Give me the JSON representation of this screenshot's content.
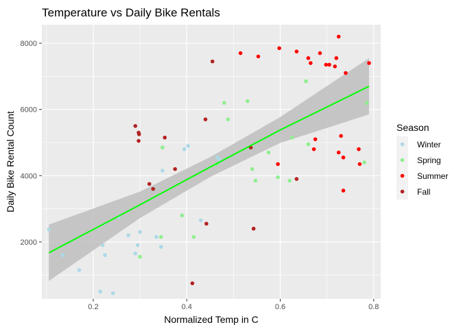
{
  "chart_data": {
    "type": "scatter",
    "title": "Temperature vs Daily Bike Rentals",
    "xlabel": "Normalized Temp in C",
    "ylabel": "Daily Bike Rental Count",
    "xlim": [
      0.09,
      0.815
    ],
    "ylim": [
      280,
      8560
    ],
    "x_ticks": [
      0.2,
      0.4,
      0.6,
      0.8
    ],
    "x_tick_labels": [
      "0.2",
      "0.4",
      "0.6",
      "0.8"
    ],
    "y_ticks": [
      2000,
      4000,
      6000,
      8000
    ],
    "y_tick_labels": [
      "2000",
      "4000",
      "6000",
      "8000"
    ],
    "grid": true,
    "panel_background": "#ebebeb",
    "legend": {
      "title": "Season",
      "position": "right"
    },
    "series": [
      {
        "name": "Winter",
        "color": "#add8e6",
        "points": [
          [
            0.105,
            2370
          ],
          [
            0.135,
            1600
          ],
          [
            0.17,
            1150
          ],
          [
            0.215,
            500
          ],
          [
            0.22,
            1900
          ],
          [
            0.225,
            1600
          ],
          [
            0.242,
            450
          ],
          [
            0.255,
            2750
          ],
          [
            0.275,
            2200
          ],
          [
            0.29,
            1650
          ],
          [
            0.295,
            1900
          ],
          [
            0.3,
            2300
          ],
          [
            0.335,
            2150
          ],
          [
            0.345,
            1850
          ],
          [
            0.348,
            4150
          ],
          [
            0.395,
            4800
          ],
          [
            0.403,
            4900
          ],
          [
            0.43,
            2650
          ],
          [
            0.465,
            4550
          ],
          [
            0.47,
            4500
          ]
        ]
      },
      {
        "name": "Spring",
        "color": "#90ee90",
        "points": [
          [
            0.3,
            1550
          ],
          [
            0.345,
            2150
          ],
          [
            0.348,
            4850
          ],
          [
            0.39,
            2800
          ],
          [
            0.415,
            2150
          ],
          [
            0.465,
            4350
          ],
          [
            0.48,
            6200
          ],
          [
            0.488,
            5700
          ],
          [
            0.53,
            6250
          ],
          [
            0.54,
            4200
          ],
          [
            0.547,
            3850
          ],
          [
            0.575,
            4700
          ],
          [
            0.595,
            3950
          ],
          [
            0.62,
            3850
          ],
          [
            0.625,
            5150
          ],
          [
            0.655,
            6850
          ],
          [
            0.66,
            4950
          ],
          [
            0.78,
            4400
          ],
          [
            0.785,
            6200
          ]
        ]
      },
      {
        "name": "Summer",
        "color": "#ff0000",
        "points": [
          [
            0.515,
            7700
          ],
          [
            0.553,
            7600
          ],
          [
            0.595,
            4350
          ],
          [
            0.598,
            7850
          ],
          [
            0.635,
            7750
          ],
          [
            0.66,
            7550
          ],
          [
            0.665,
            7400
          ],
          [
            0.672,
            4800
          ],
          [
            0.675,
            5100
          ],
          [
            0.685,
            7700
          ],
          [
            0.698,
            7350
          ],
          [
            0.705,
            7350
          ],
          [
            0.717,
            7300
          ],
          [
            0.72,
            7550
          ],
          [
            0.725,
            8200
          ],
          [
            0.725,
            4700
          ],
          [
            0.73,
            5200
          ],
          [
            0.735,
            4550
          ],
          [
            0.735,
            3550
          ],
          [
            0.74,
            7100
          ],
          [
            0.768,
            4800
          ],
          [
            0.77,
            4350
          ],
          [
            0.79,
            7400
          ]
        ]
      },
      {
        "name": "Fall",
        "color": "#b22222",
        "points": [
          [
            0.29,
            5500
          ],
          [
            0.297,
            5300
          ],
          [
            0.298,
            5250
          ],
          [
            0.297,
            5050
          ],
          [
            0.353,
            5150
          ],
          [
            0.32,
            3750
          ],
          [
            0.328,
            3600
          ],
          [
            0.375,
            4200
          ],
          [
            0.412,
            750
          ],
          [
            0.44,
            5700
          ],
          [
            0.442,
            2550
          ],
          [
            0.455,
            7450
          ],
          [
            0.537,
            4850
          ],
          [
            0.543,
            2400
          ],
          [
            0.635,
            3900
          ]
        ]
      }
    ],
    "trend_line": {
      "color": "#00ff00",
      "band_color": "#bebebe",
      "points": [
        {
          "x": 0.105,
          "y": 1670,
          "ymin": 820,
          "ymax": 2520
        },
        {
          "x": 0.3,
          "y": 3120,
          "ymin": 2720,
          "ymax": 3520
        },
        {
          "x": 0.45,
          "y": 4260,
          "ymin": 3960,
          "ymax": 4560
        },
        {
          "x": 0.6,
          "y": 5380,
          "ymin": 4990,
          "ymax": 5770
        },
        {
          "x": 0.79,
          "y": 6700,
          "ymin": 5850,
          "ymax": 7550
        }
      ]
    }
  }
}
